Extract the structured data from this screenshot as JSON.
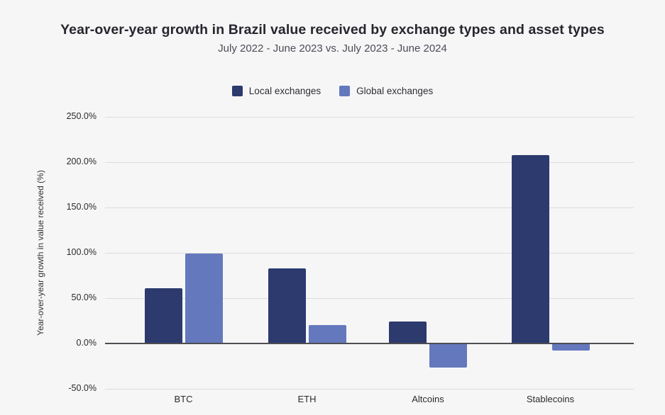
{
  "chart_data": {
    "type": "bar",
    "title": "Year-over-year growth in Brazil value received by exchange types and asset types",
    "subtitle": "July 2022 - June 2023 vs. July 2023 - June 2024",
    "ylabel": "Year-over-year growth in value received (%)",
    "categories": [
      "BTC",
      "ETH",
      "Altcoins",
      "Stablecoins"
    ],
    "series": [
      {
        "name": "Local exchanges",
        "color": "#2c3a6e",
        "values": [
          61,
          83,
          24,
          208
        ]
      },
      {
        "name": "Global exchanges",
        "color": "#6478bd",
        "values": [
          99,
          20,
          -26,
          -7
        ]
      }
    ],
    "yticks": [
      250,
      200,
      150,
      100,
      50,
      0,
      -50
    ],
    "ytick_labels": [
      "250.0%",
      "200.0%",
      "150.0%",
      "100.0%",
      "50.0%",
      "0.0%",
      "-50.0%"
    ],
    "ylim": [
      -50,
      250
    ],
    "grid": true,
    "legend_position": "top",
    "colors": {
      "background": "#f6f6f7",
      "gridline": "#dcdcdd",
      "zero_line": "#4d4d52",
      "title_text": "#26262e",
      "subtitle_text": "#4c4c55",
      "axis_text": "#2b2b2b"
    }
  }
}
